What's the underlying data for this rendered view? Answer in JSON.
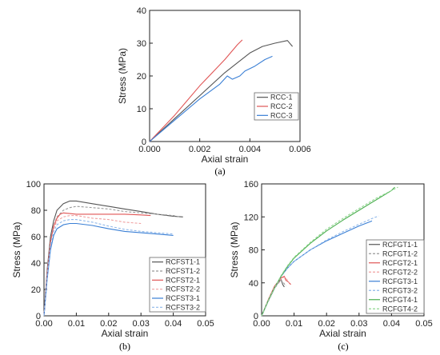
{
  "chart_data": [
    {
      "panel_label": "(a)",
      "type": "line",
      "xlabel": "Axial strain",
      "ylabel": "Stress (MPa)",
      "xlim": [
        0,
        0.006
      ],
      "ylim": [
        0,
        40
      ],
      "xticks": [
        "0.000",
        "0.002",
        "0.004",
        "0.006"
      ],
      "yticks": [
        "0",
        "10",
        "20",
        "30",
        "40"
      ],
      "legend_position": "bottom-right",
      "series": [
        {
          "name": "RCC-1",
          "color": "#555555",
          "dash": "solid",
          "x": [
            0,
            0.001,
            0.002,
            0.003,
            0.0035,
            0.004,
            0.0045,
            0.005,
            0.0055,
            0.0057
          ],
          "y": [
            0,
            7,
            14,
            21,
            24,
            27,
            29,
            30,
            30.8,
            29
          ]
        },
        {
          "name": "RCC-2",
          "color": "#e05555",
          "dash": "solid",
          "x": [
            0,
            0.001,
            0.002,
            0.003,
            0.0035,
            0.0037
          ],
          "y": [
            0,
            8,
            17,
            25,
            29.5,
            31
          ]
        },
        {
          "name": "RCC-3",
          "color": "#3a7fd5",
          "dash": "solid",
          "x": [
            0,
            0.001,
            0.002,
            0.0028,
            0.0031,
            0.0033,
            0.0036,
            0.0038,
            0.0042,
            0.0046,
            0.0049
          ],
          "y": [
            0,
            6.5,
            13,
            17.5,
            20,
            19,
            20,
            21.5,
            23,
            25,
            26
          ]
        }
      ]
    },
    {
      "panel_label": "(b)",
      "type": "line",
      "xlabel": "Axial strain",
      "ylabel": "Stress (MPa)",
      "xlim": [
        0,
        0.05
      ],
      "ylim": [
        0,
        100
      ],
      "xticks": [
        "0.00",
        "0.01",
        "0.02",
        "0.03",
        "0.04",
        "0.05"
      ],
      "yticks": [
        "0",
        "20",
        "40",
        "60",
        "80",
        "100"
      ],
      "legend_position": "bottom-right",
      "series": [
        {
          "name": "RCFST1-1",
          "color": "#555555",
          "dash": "solid",
          "x": [
            0,
            0.001,
            0.002,
            0.003,
            0.004,
            0.006,
            0.008,
            0.01,
            0.015,
            0.02,
            0.025,
            0.03,
            0.035,
            0.04,
            0.043
          ],
          "y": [
            0,
            35,
            60,
            72,
            80,
            85,
            87,
            87,
            85,
            83,
            81,
            79,
            77,
            75.5,
            75
          ]
        },
        {
          "name": "RCFST1-2",
          "color": "#999999",
          "dash": "dashed",
          "x": [
            0,
            0.001,
            0.002,
            0.003,
            0.004,
            0.006,
            0.008,
            0.01,
            0.015,
            0.02,
            0.025,
            0.03,
            0.035,
            0.04,
            0.042
          ],
          "y": [
            0,
            33,
            57,
            68,
            75,
            80,
            82,
            83,
            82,
            81,
            79,
            78,
            77,
            76,
            75
          ]
        },
        {
          "name": "RCFST2-1",
          "color": "#e05555",
          "dash": "solid",
          "x": [
            0,
            0.001,
            0.002,
            0.003,
            0.004,
            0.005,
            0.006,
            0.008,
            0.01,
            0.015,
            0.02,
            0.025,
            0.03,
            0.033
          ],
          "y": [
            0,
            32,
            56,
            68,
            74,
            77,
            78,
            77.5,
            77,
            77,
            77,
            77,
            76.5,
            76
          ]
        },
        {
          "name": "RCFST2-2",
          "color": "#f0a0a0",
          "dash": "dashed",
          "x": [
            0,
            0.001,
            0.002,
            0.003,
            0.004,
            0.006,
            0.008,
            0.01,
            0.015,
            0.02,
            0.025,
            0.03
          ],
          "y": [
            0,
            30,
            54,
            66,
            72,
            75,
            76,
            76,
            74,
            73,
            71,
            70
          ]
        },
        {
          "name": "RCFST3-1",
          "color": "#3a7fd5",
          "dash": "solid",
          "x": [
            0,
            0.001,
            0.002,
            0.003,
            0.004,
            0.006,
            0.008,
            0.01,
            0.015,
            0.02,
            0.025,
            0.03,
            0.035,
            0.04
          ],
          "y": [
            0,
            28,
            50,
            61,
            66,
            69,
            70,
            70,
            68.5,
            66,
            64,
            63,
            62,
            61
          ]
        },
        {
          "name": "RCFST3-2",
          "color": "#8fb8ea",
          "dash": "dashed",
          "x": [
            0,
            0.001,
            0.002,
            0.003,
            0.004,
            0.006,
            0.008,
            0.01,
            0.015,
            0.02,
            0.025,
            0.03,
            0.035,
            0.04
          ],
          "y": [
            0,
            30,
            53,
            64,
            69,
            72,
            73,
            73,
            71,
            68,
            65.5,
            64,
            63,
            62
          ]
        }
      ]
    },
    {
      "panel_label": "(c)",
      "type": "line",
      "xlabel": "Axial strain",
      "ylabel": "Stress (MPa)",
      "xlim": [
        0,
        0.05
      ],
      "ylim": [
        0,
        160
      ],
      "xticks": [
        "0.00",
        "0.01",
        "0.02",
        "0.03",
        "0.04",
        "0.05"
      ],
      "yticks": [
        "0",
        "40",
        "80",
        "120",
        "160"
      ],
      "legend_position": "bottom-right",
      "series": [
        {
          "name": "RCFGT1-1",
          "color": "#555555",
          "dash": "solid",
          "x": [
            0,
            0.002,
            0.004,
            0.005,
            0.006,
            0.0065,
            0.007
          ],
          "y": [
            0,
            18,
            34,
            40,
            44,
            38,
            35
          ]
        },
        {
          "name": "RCFGT1-2",
          "color": "#999999",
          "dash": "dashed",
          "x": [
            0,
            0.002,
            0.004,
            0.005,
            0.006,
            0.0068,
            0.0075
          ],
          "y": [
            0,
            17,
            33,
            39,
            43,
            40,
            36
          ]
        },
        {
          "name": "RCFGT2-1",
          "color": "#e05555",
          "dash": "solid",
          "x": [
            0,
            0.002,
            0.004,
            0.006,
            0.007,
            0.0075,
            0.008,
            0.0085,
            0.009
          ],
          "y": [
            0,
            19,
            36,
            46,
            48,
            43,
            42,
            40,
            38
          ]
        },
        {
          "name": "RCFGT2-2",
          "color": "#f0a0a0",
          "dash": "dashed",
          "x": [
            0,
            0.002,
            0.004,
            0.006,
            0.007,
            0.0078,
            0.0085
          ],
          "y": [
            0,
            18,
            35,
            45,
            47,
            44,
            40
          ]
        },
        {
          "name": "RCFGT3-1",
          "color": "#3a7fd5",
          "dash": "solid",
          "x": [
            0,
            0.002,
            0.004,
            0.006,
            0.008,
            0.01,
            0.015,
            0.02,
            0.025,
            0.03,
            0.034
          ],
          "y": [
            0,
            18,
            34,
            48,
            58,
            66,
            80,
            91,
            100,
            109,
            115
          ]
        },
        {
          "name": "RCFGT3-2",
          "color": "#8fb8ea",
          "dash": "dashed",
          "x": [
            0,
            0.002,
            0.004,
            0.006,
            0.008,
            0.01,
            0.015,
            0.02,
            0.025,
            0.03,
            0.034,
            0.036
          ],
          "y": [
            0,
            18,
            34,
            48,
            58,
            66,
            80,
            92,
            102,
            111,
            118,
            121
          ]
        },
        {
          "name": "RCFGT4-1",
          "color": "#4caf50",
          "dash": "solid",
          "x": [
            0,
            0.002,
            0.004,
            0.006,
            0.008,
            0.01,
            0.015,
            0.02,
            0.025,
            0.03,
            0.035,
            0.04,
            0.041
          ],
          "y": [
            0,
            18,
            34,
            48,
            60,
            70,
            88,
            103,
            116,
            128,
            140,
            152,
            156
          ]
        },
        {
          "name": "RCFGT4-2",
          "color": "#8fd68f",
          "dash": "dashed",
          "x": [
            0,
            0.002,
            0.004,
            0.006,
            0.008,
            0.01,
            0.015,
            0.02,
            0.025,
            0.03,
            0.035,
            0.04,
            0.042
          ],
          "y": [
            0,
            18,
            34,
            49,
            61,
            71,
            89,
            105,
            118,
            130,
            142,
            152,
            156
          ]
        }
      ]
    }
  ]
}
